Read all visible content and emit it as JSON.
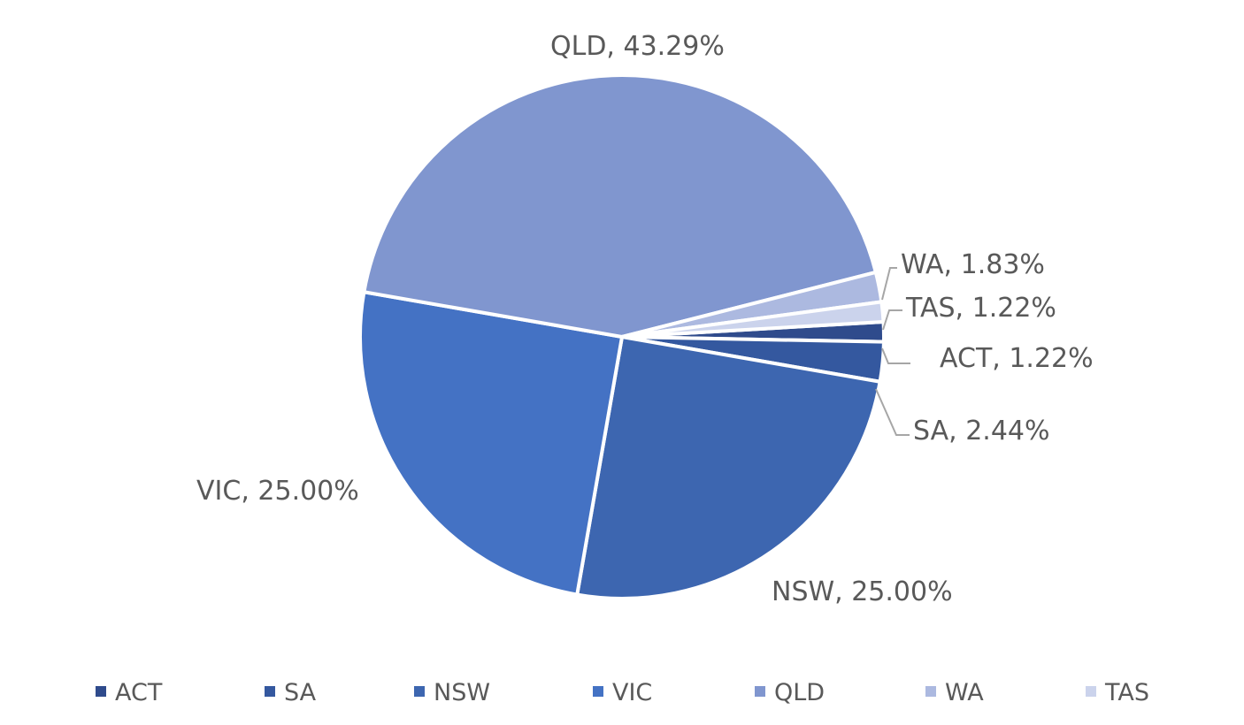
{
  "chart_data": {
    "type": "pie",
    "title": "",
    "label_format": "{name}, {pct}",
    "slices": [
      {
        "name": "ACT",
        "value": 1.22,
        "label": "1.22%",
        "color": "#2f4b8c"
      },
      {
        "name": "SA",
        "value": 2.44,
        "label": "2.44%",
        "color": "#34589f"
      },
      {
        "name": "NSW",
        "value": 25.0,
        "label": "25.00%",
        "color": "#3d66b0"
      },
      {
        "name": "VIC",
        "value": 25.0,
        "label": "25.00%",
        "color": "#4472c4"
      },
      {
        "name": "QLD",
        "value": 43.29,
        "label": "43.29%",
        "color": "#8096cf"
      },
      {
        "name": "WA",
        "value": 1.83,
        "label": "1.83%",
        "color": "#acb9e0"
      },
      {
        "name": "TAS",
        "value": 1.22,
        "label": "1.22%",
        "color": "#cbd3ec"
      }
    ],
    "legend": {
      "position": "bottom",
      "entries": [
        "ACT",
        "SA",
        "NSW",
        "VIC",
        "QLD",
        "WA",
        "TAS"
      ]
    },
    "label_color": "#595959",
    "leader_line_color": "#a6a6a6"
  }
}
